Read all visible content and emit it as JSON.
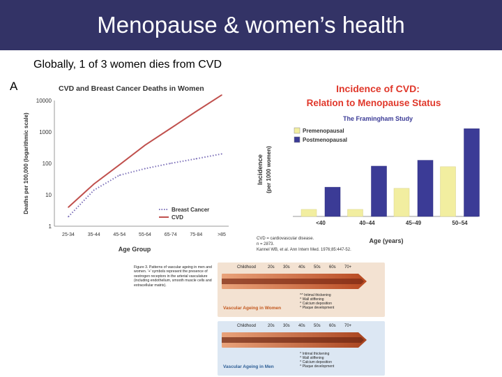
{
  "slide": {
    "title": "Menopause & women’s health",
    "subtitle": "Globally, 1 of 3 women dies from CVD",
    "panel_letter": "A"
  },
  "chart_data": [
    {
      "type": "line",
      "title": "CVD and Breast Cancer Deaths in Women",
      "xlabel": "Age Group",
      "ylabel": "Deaths per 100,000 (logarithmic scale)",
      "yscale": "log",
      "ylim": [
        1,
        10000
      ],
      "yticks": [
        "10000",
        "1000",
        "100",
        "10",
        "1"
      ],
      "categories": [
        "25-34",
        "35-44",
        "45-54",
        "55-64",
        "65-74",
        "75-84",
        ">85"
      ],
      "grid": false,
      "legend_position": "bottom-right",
      "series": [
        {
          "name": "Breast Cancer",
          "color": "#7b6fb8",
          "style": "dotted",
          "values": [
            2,
            14,
            42,
            68,
            100,
            140,
            200
          ]
        },
        {
          "name": "CVD",
          "color": "#c0504d",
          "style": "solid",
          "values": [
            4,
            22,
            90,
            380,
            1300,
            4500,
            15000
          ]
        }
      ]
    },
    {
      "type": "bar",
      "title": "Incidence of CVD:",
      "title_line2": "Relation to Menopause Status",
      "subtitle": "The Framingham Study",
      "xlabel": "Age (years)",
      "ylabel_line1": "Incidence",
      "ylabel_line2": "(per 1000 women)",
      "categories": [
        "<40",
        "40–44",
        "45–49",
        "50–54"
      ],
      "ylim": [
        0,
        16
      ],
      "grid": false,
      "legend_position": "top-left",
      "series": [
        {
          "name": "Premenopausal",
          "color": "#f2eea0",
          "values": [
            1.2,
            1.2,
            4.8,
            8.5
          ]
        },
        {
          "name": "Postmenopausal",
          "color": "#3b3b96",
          "values": [
            5.0,
            8.6,
            9.6,
            15.0
          ]
        }
      ],
      "notes": [
        "CVD = cardiovascular disease.",
        "n = 2873.",
        "Kannel WB, et al. Ann Intern Med. 1976;85:447-52."
      ]
    }
  ],
  "vascular": {
    "caption": "Figure 3. Patterns of vascular ageing in men and women. '+' symbols represent the presence of oestrogen receptors in the arterial vasculature (including endothelium, smooth muscle cells and extracellular matrix).",
    "stages": [
      "Childhood",
      "20s",
      "30s",
      "40s",
      "50s",
      "60s",
      "70+"
    ],
    "women": {
      "label": "Vascular Ageing in Women",
      "legend": [
        "^^ Intimal thickening",
        "^ Wall stiffening",
        "^ Calcium deposition",
        "^ Plaque development"
      ]
    },
    "men": {
      "label": "Vascular Ageing in Men",
      "legend": [
        "^ Intimal thickening",
        "^ Wall stiffening",
        "^ Calcium deposition",
        "^ Plaque development"
      ]
    }
  }
}
